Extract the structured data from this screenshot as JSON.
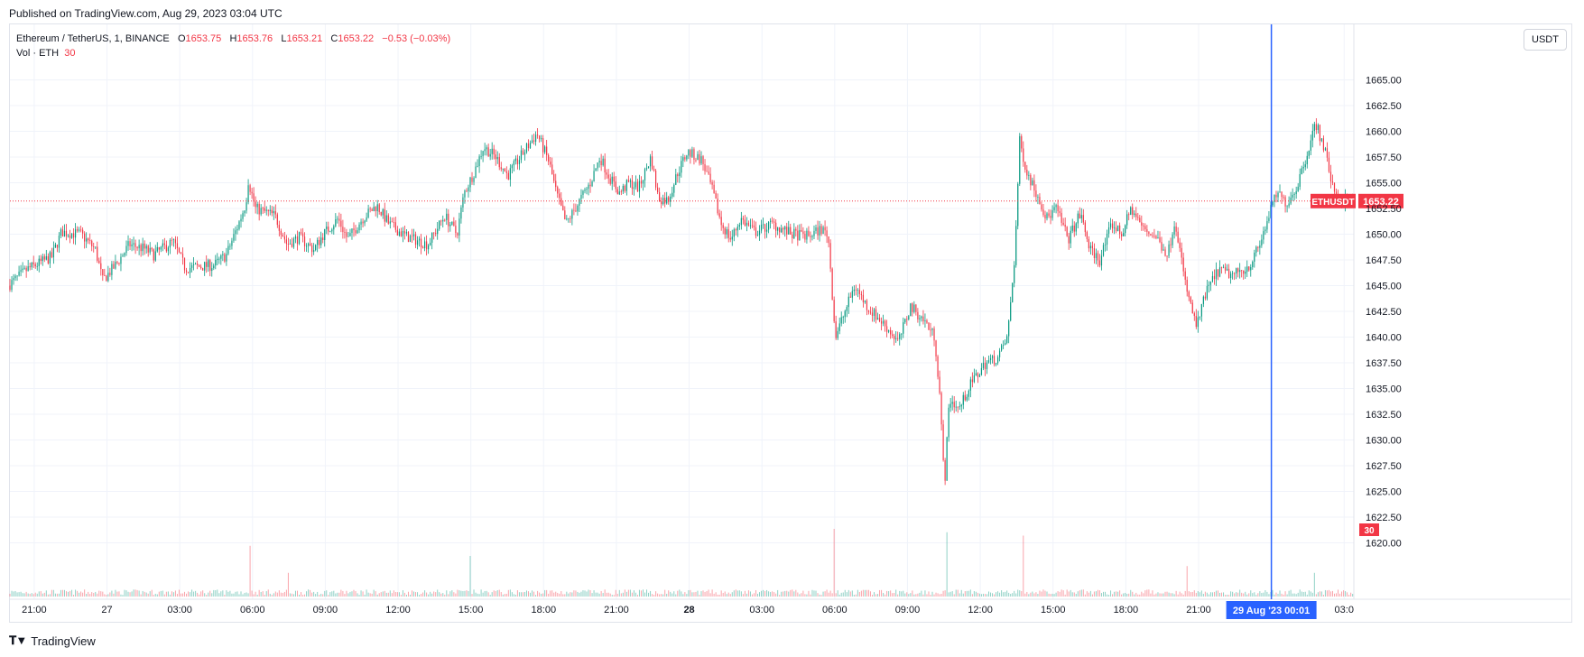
{
  "header": {
    "published": "Published on TradingView.com, Aug 29, 2023 03:04 UTC"
  },
  "legend": {
    "symbol": "Ethereum / TetherUS, 1, BINANCE",
    "o_label": "O",
    "o": "1653.75",
    "h_label": "H",
    "h": "1653.76",
    "l_label": "L",
    "l": "1653.21",
    "c_label": "C",
    "c": "1653.22",
    "change": "−0.53 (−0.03%)",
    "vol_label": "Vol · ETH",
    "vol": "30"
  },
  "currency_button": "USDT",
  "footer": {
    "brand": "TradingView",
    "logo_icon": "tradingview-logo-icon"
  },
  "colors": {
    "up": "#089981",
    "down": "#f23645",
    "crosshair": "#2962ff",
    "grid": "#f0f3fa",
    "axis_text": "#131722"
  },
  "chart_data": {
    "type": "candlestick",
    "symbol_label": "ETHUSDT",
    "last_price": 1653.22,
    "last_price_label": "1653.22",
    "volume_last_label": "30",
    "crosshair_time_label": "29 Aug '23   00:01",
    "y_axis": {
      "min": 1617.5,
      "max": 1667.5,
      "ticks": [
        1620,
        1622.5,
        1625,
        1627.5,
        1630,
        1632.5,
        1635,
        1637.5,
        1640,
        1642.5,
        1645,
        1647.5,
        1650,
        1652.5,
        1655,
        1657.5,
        1660,
        1662.5,
        1665
      ],
      "tick_labels": [
        "1620.00",
        "1622.50",
        "1625.00",
        "1627.50",
        "1630.00",
        "1632.50",
        "1635.00",
        "1637.50",
        "1640.00",
        "1642.50",
        "1645.00",
        "1647.50",
        "1650.00",
        "1652.50",
        "1655.00",
        "1657.50",
        "1660.00",
        "1662.50",
        "1665.00"
      ]
    },
    "x_axis": {
      "ticks": [
        {
          "label": "21:00",
          "bold": false
        },
        {
          "label": "27",
          "bold": false
        },
        {
          "label": "03:00",
          "bold": false
        },
        {
          "label": "06:00",
          "bold": false
        },
        {
          "label": "09:00",
          "bold": false
        },
        {
          "label": "12:00",
          "bold": false
        },
        {
          "label": "15:00",
          "bold": false
        },
        {
          "label": "18:00",
          "bold": false
        },
        {
          "label": "21:00",
          "bold": false
        },
        {
          "label": "28",
          "bold": true
        },
        {
          "label": "03:00",
          "bold": false
        },
        {
          "label": "06:00",
          "bold": false
        },
        {
          "label": "09:00",
          "bold": false
        },
        {
          "label": "12:00",
          "bold": false
        },
        {
          "label": "15:00",
          "bold": false
        },
        {
          "label": "18:00",
          "bold": false
        },
        {
          "label": "21:00",
          "bold": false
        },
        {
          "label": "03:0",
          "bold": false
        }
      ],
      "tick_hours": [
        1,
        4,
        7,
        10,
        13,
        16,
        19,
        22,
        25,
        28,
        31,
        34,
        37,
        40,
        43,
        46,
        49,
        55
      ],
      "start_hour": 0,
      "end_hour": 55.4,
      "crosshair_hour": 52
    },
    "price_path": [
      [
        0,
        1645.0
      ],
      [
        0.8,
        1646.6
      ],
      [
        1.8,
        1647.8
      ],
      [
        2.2,
        1650.2
      ],
      [
        3.0,
        1650.0
      ],
      [
        3.6,
        1648.5
      ],
      [
        3.9,
        1645.5
      ],
      [
        4.5,
        1647.2
      ],
      [
        5.0,
        1649.0
      ],
      [
        5.6,
        1648.6
      ],
      [
        6.0,
        1648.0
      ],
      [
        6.8,
        1649.3
      ],
      [
        7.3,
        1646.7
      ],
      [
        8.5,
        1647.0
      ],
      [
        9.0,
        1648.0
      ],
      [
        9.5,
        1651.0
      ],
      [
        9.8,
        1653.0
      ],
      [
        9.9,
        1655.2
      ],
      [
        10.2,
        1652.5
      ],
      [
        11.0,
        1651.8
      ],
      [
        11.5,
        1649.0
      ],
      [
        12.0,
        1649.7
      ],
      [
        12.6,
        1648.5
      ],
      [
        13.0,
        1650.0
      ],
      [
        13.6,
        1651.5
      ],
      [
        14.0,
        1649.5
      ],
      [
        14.6,
        1651.5
      ],
      [
        15.2,
        1652.8
      ],
      [
        15.7,
        1651.0
      ],
      [
        16.4,
        1649.8
      ],
      [
        17.3,
        1649.0
      ],
      [
        18.0,
        1651.8
      ],
      [
        18.5,
        1650.0
      ],
      [
        18.8,
        1654.0
      ],
      [
        19.2,
        1656.0
      ],
      [
        19.6,
        1658.5
      ],
      [
        20.1,
        1657.5
      ],
      [
        20.6,
        1655.7
      ],
      [
        21.2,
        1657.8
      ],
      [
        21.8,
        1659.8
      ],
      [
        22.3,
        1657.0
      ],
      [
        22.6,
        1654.0
      ],
      [
        23.0,
        1651.0
      ],
      [
        23.5,
        1653.0
      ],
      [
        24.0,
        1655.0
      ],
      [
        24.4,
        1657.5
      ],
      [
        24.8,
        1655.5
      ],
      [
        25.2,
        1654.0
      ],
      [
        25.6,
        1655.0
      ],
      [
        26.0,
        1654.5
      ],
      [
        26.5,
        1657.5
      ],
      [
        26.8,
        1653.5
      ],
      [
        27.2,
        1653.3
      ],
      [
        27.6,
        1656.0
      ],
      [
        28.0,
        1658.0
      ],
      [
        28.6,
        1657.2
      ],
      [
        29.0,
        1654.5
      ],
      [
        29.4,
        1651.0
      ],
      [
        29.8,
        1649.5
      ],
      [
        30.2,
        1651.5
      ],
      [
        30.8,
        1650.2
      ],
      [
        31.5,
        1651.0
      ],
      [
        32.3,
        1650.0
      ],
      [
        33.0,
        1649.8
      ],
      [
        33.5,
        1650.5
      ],
      [
        33.8,
        1650.0
      ],
      [
        34.1,
        1640.0
      ],
      [
        34.5,
        1642.5
      ],
      [
        34.9,
        1645.0
      ],
      [
        35.4,
        1643.0
      ],
      [
        36.2,
        1641.0
      ],
      [
        36.7,
        1639.5
      ],
      [
        37.2,
        1643.0
      ],
      [
        37.8,
        1641.5
      ],
      [
        38.2,
        1640.0
      ],
      [
        38.4,
        1634.5
      ],
      [
        38.6,
        1625.5
      ],
      [
        38.8,
        1634.0
      ],
      [
        39.2,
        1633.0
      ],
      [
        39.7,
        1635.5
      ],
      [
        40.3,
        1637.5
      ],
      [
        40.8,
        1638.0
      ],
      [
        41.2,
        1640.0
      ],
      [
        41.5,
        1648.0
      ],
      [
        41.7,
        1659.0
      ],
      [
        42.0,
        1656.0
      ],
      [
        42.5,
        1653.5
      ],
      [
        42.8,
        1651.5
      ],
      [
        43.2,
        1652.5
      ],
      [
        43.7,
        1649.5
      ],
      [
        44.2,
        1652.0
      ],
      [
        44.6,
        1648.5
      ],
      [
        45.0,
        1647.5
      ],
      [
        45.5,
        1651.0
      ],
      [
        45.9,
        1650.0
      ],
      [
        46.3,
        1652.5
      ],
      [
        46.8,
        1650.5
      ],
      [
        47.3,
        1649.8
      ],
      [
        47.8,
        1648.0
      ],
      [
        48.1,
        1651.5
      ],
      [
        48.5,
        1645.5
      ],
      [
        48.8,
        1642.5
      ],
      [
        49.0,
        1641.0
      ],
      [
        49.4,
        1644.5
      ],
      [
        49.9,
        1646.5
      ],
      [
        50.5,
        1646.0
      ],
      [
        51.2,
        1647.0
      ],
      [
        51.6,
        1649.0
      ],
      [
        52.0,
        1652.0
      ],
      [
        52.3,
        1654.0
      ],
      [
        52.7,
        1653.0
      ],
      [
        53.1,
        1654.5
      ],
      [
        53.5,
        1657.5
      ],
      [
        53.9,
        1660.8
      ],
      [
        54.3,
        1658.0
      ],
      [
        54.6,
        1654.5
      ],
      [
        55.0,
        1653.2
      ],
      [
        55.4,
        1653.22
      ]
    ],
    "volume": {
      "base_ratio": 0.08,
      "spikes": [
        [
          9.9,
          0.75
        ],
        [
          11.5,
          0.35
        ],
        [
          19.0,
          0.6
        ],
        [
          34.0,
          1.0
        ],
        [
          38.6,
          0.95
        ],
        [
          41.8,
          0.9
        ],
        [
          48.5,
          0.45
        ],
        [
          53.8,
          0.35
        ]
      ]
    }
  }
}
